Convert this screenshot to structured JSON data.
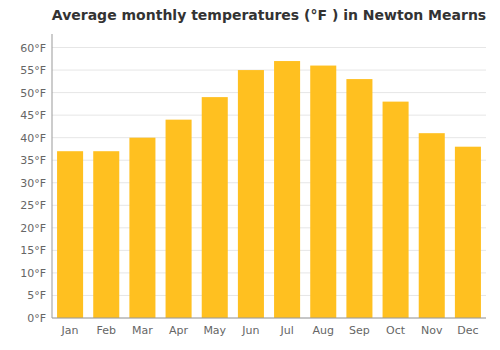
{
  "chart_data": {
    "type": "bar",
    "title": "Average monthly temperatures (°F ) in Newton Mearns",
    "categories": [
      "Jan",
      "Feb",
      "Mar",
      "Apr",
      "May",
      "Jun",
      "Jul",
      "Aug",
      "Sep",
      "Oct",
      "Nov",
      "Dec"
    ],
    "values": [
      37,
      37,
      40,
      44,
      49,
      55,
      57,
      56,
      53,
      48,
      41,
      38
    ],
    "color": "#FFC020",
    "ylim": [
      0,
      63
    ],
    "yticks": [
      {
        "value": 0,
        "label": "0°F"
      },
      {
        "value": 5,
        "label": "5°F"
      },
      {
        "value": 10,
        "label": "10°F"
      },
      {
        "value": 15,
        "label": "15°F"
      },
      {
        "value": 20,
        "label": "20°F"
      },
      {
        "value": 25,
        "label": "25°F"
      },
      {
        "value": 30,
        "label": "30°F"
      },
      {
        "value": 35,
        "label": "35°F"
      },
      {
        "value": 40,
        "label": "40°F"
      },
      {
        "value": 45,
        "label": "45°F"
      },
      {
        "value": 50,
        "label": "50°F"
      },
      {
        "value": 55,
        "label": "55°F"
      },
      {
        "value": 60,
        "label": "60°F"
      }
    ],
    "grid": true
  }
}
